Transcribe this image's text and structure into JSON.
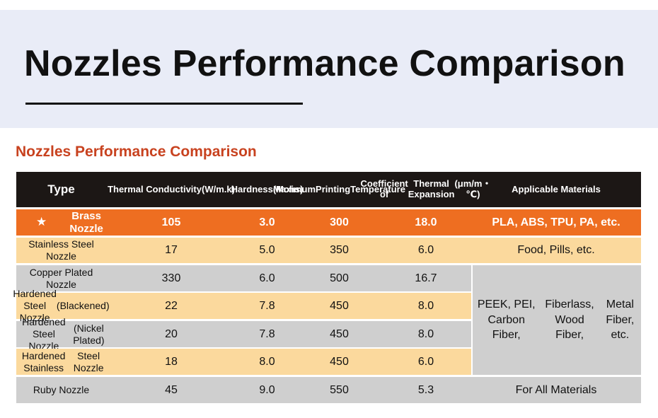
{
  "header": {
    "title": "Nozzles Performance Comparison",
    "subtitle": "Nozzles Performance Comparison"
  },
  "table": {
    "columns": [
      [
        "Type"
      ],
      [
        "Thermal Conductivity",
        "(W/m.k)"
      ],
      [
        "Hardness",
        "(Mohs)"
      ],
      [
        "Maximum",
        "Printing",
        "Temperature"
      ],
      [
        "Coefficient of",
        "Thermal Expansion",
        "(μm/m・℃)"
      ],
      [
        "Applicable Materials"
      ]
    ],
    "highlight_marker": "★",
    "rows": [
      {
        "type": [
          "Brass Nozzle"
        ],
        "conductivity": "105",
        "hardness": "3.0",
        "temperature": "300",
        "expansion": "18.0",
        "materials": "PLA, ABS, TPU, PA, etc."
      },
      {
        "type": [
          "Stainless Steel Nozzle"
        ],
        "conductivity": "17",
        "hardness": "5.0",
        "temperature": "350",
        "expansion": "6.0",
        "materials": "Food, Pills, etc."
      },
      {
        "type": [
          "Copper Plated Nozzle"
        ],
        "conductivity": "330",
        "hardness": "6.0",
        "temperature": "500",
        "expansion": "16.7"
      },
      {
        "type": [
          "Hardened Steel Nozzle",
          "(Blackened)"
        ],
        "conductivity": "22",
        "hardness": "7.8",
        "temperature": "450",
        "expansion": "8.0"
      },
      {
        "type": [
          "Hardened Steel Nozzle",
          "(Nickel Plated)"
        ],
        "conductivity": "20",
        "hardness": "7.8",
        "temperature": "450",
        "expansion": "8.0"
      },
      {
        "type": [
          "Hardened Stainless",
          "Steel Nozzle"
        ],
        "conductivity": "18",
        "hardness": "8.0",
        "temperature": "450",
        "expansion": "6.0"
      },
      {
        "type": [
          "Ruby Nozzle"
        ],
        "conductivity": "45",
        "hardness": "9.0",
        "temperature": "550",
        "expansion": "5.3",
        "materials": "For All Materials"
      }
    ],
    "merged_materials": [
      "PEEK, PEI, Carbon Fiber,",
      "Fiberlass, Wood Fiber,",
      "Metal Fiber, etc."
    ]
  },
  "colors": {
    "banner_bg": "#e9ecf7",
    "header_bg": "#1c1715",
    "highlight_row": "#ee6e21",
    "peach_row": "#fbd99d",
    "grey_row": "#cfcfcf",
    "subtitle_color": "#c8421f"
  }
}
